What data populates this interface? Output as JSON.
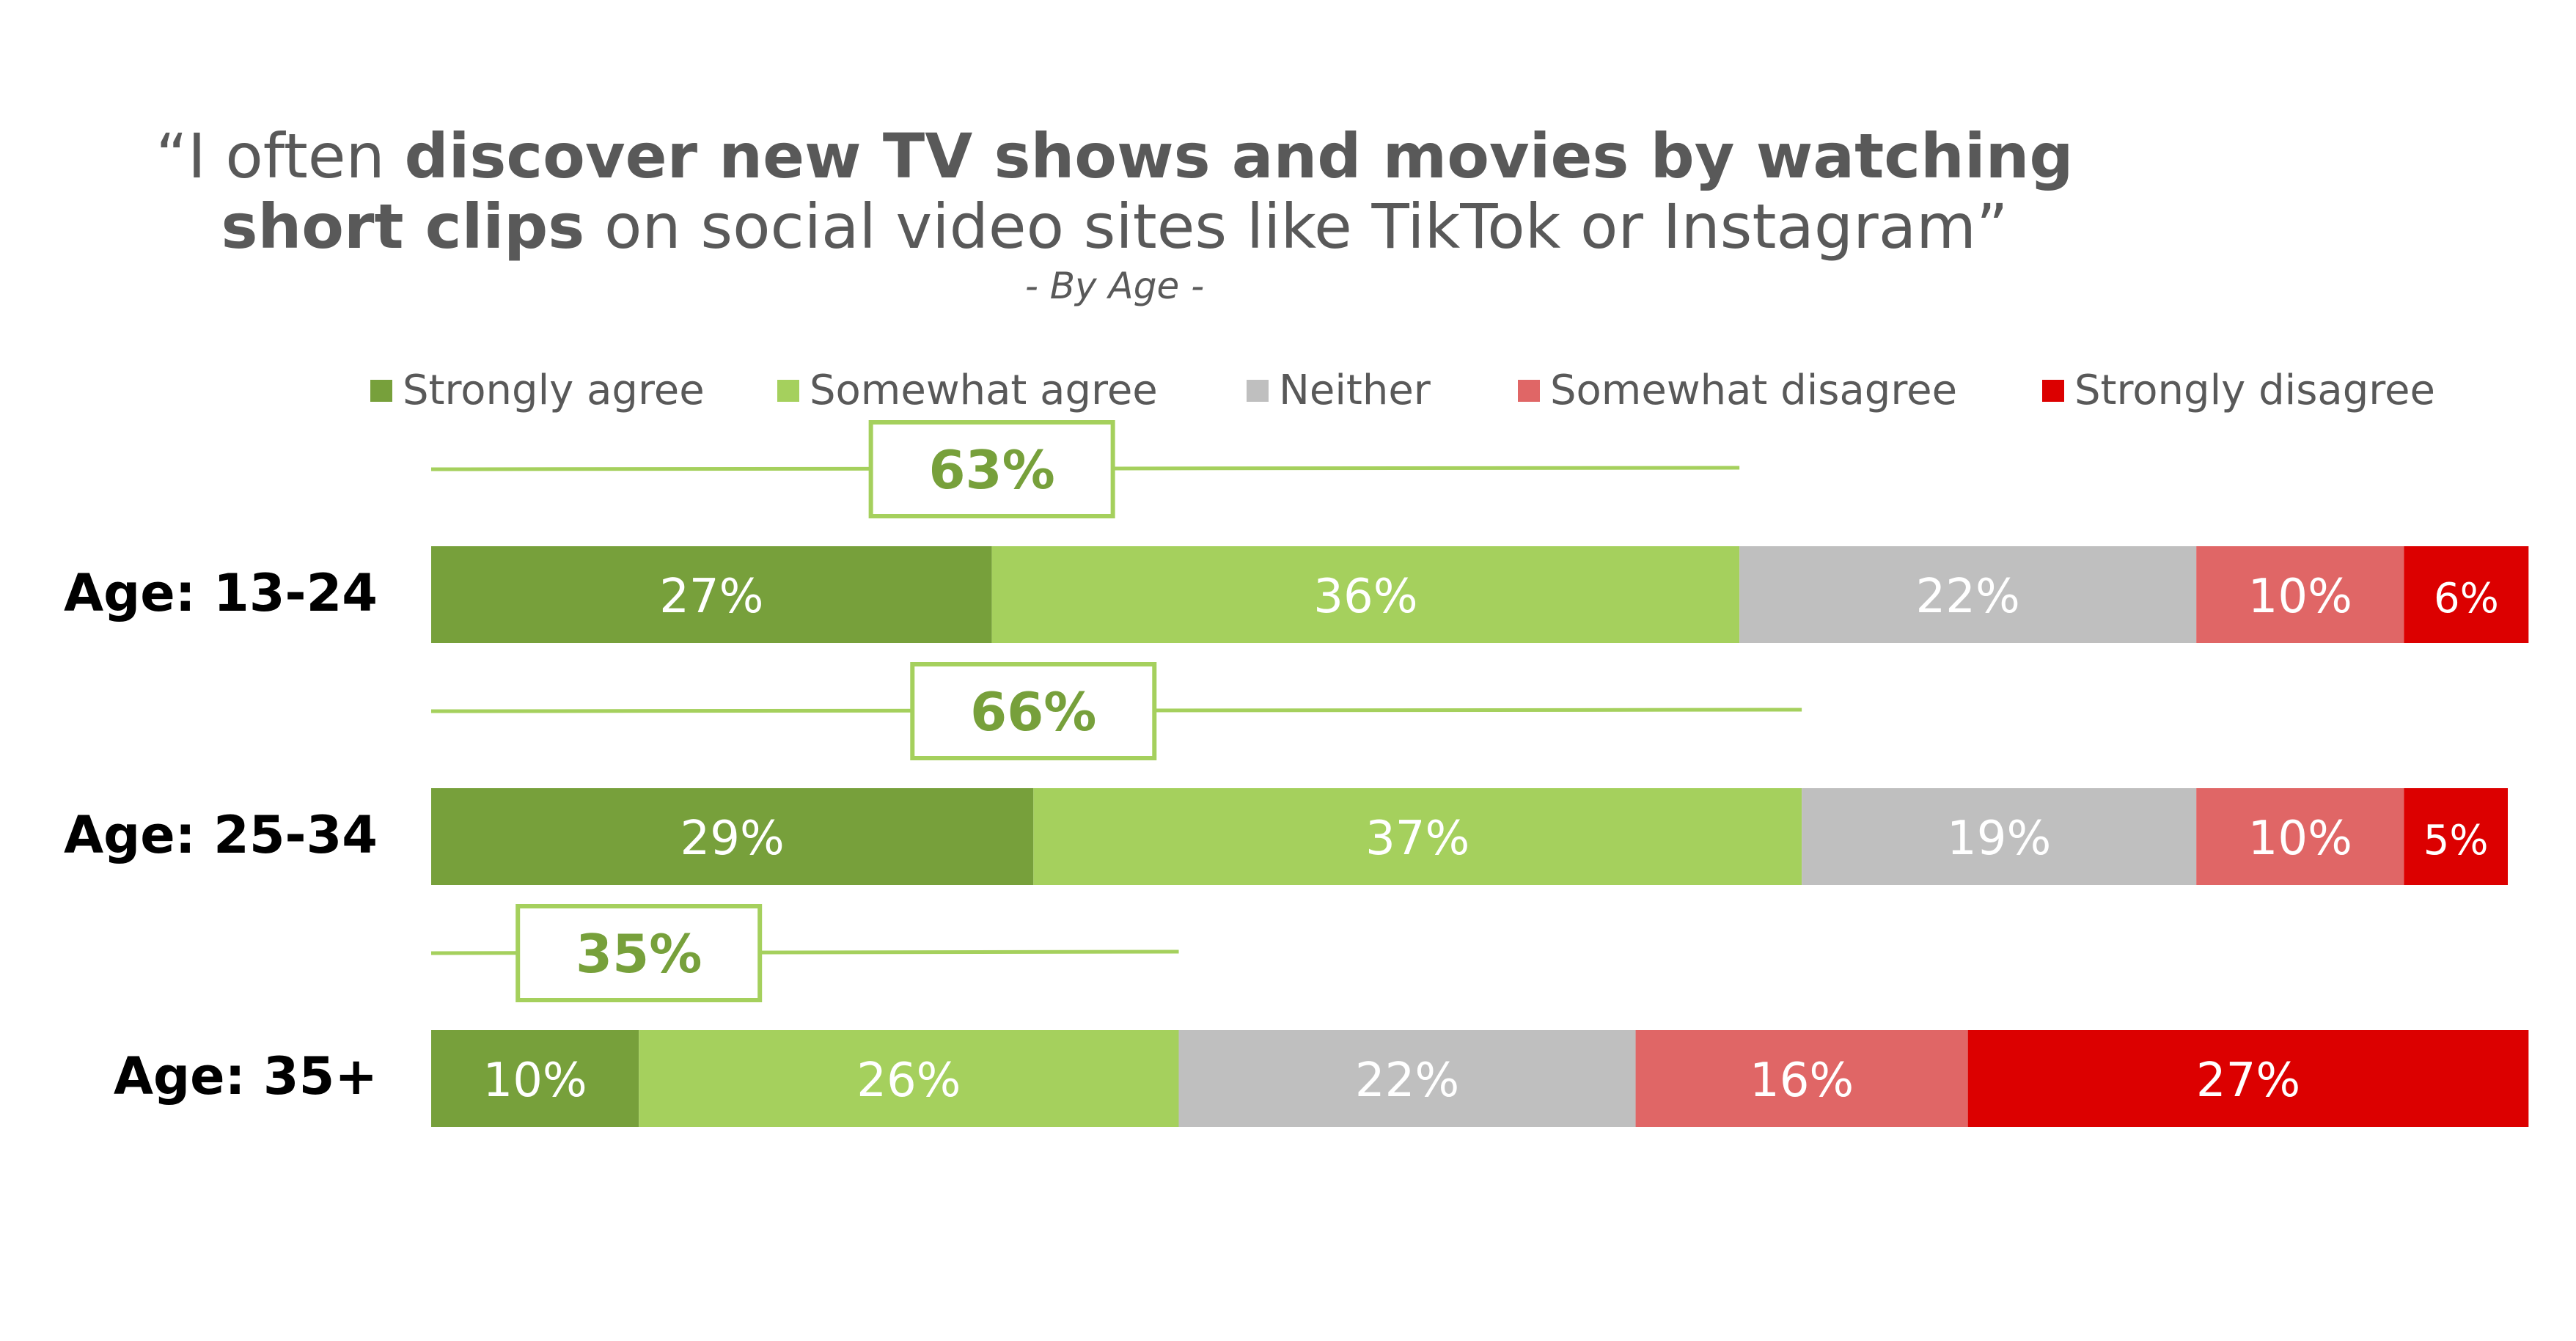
{
  "title": {
    "line1_pre": "“I often ",
    "line1_bold": "discover new TV shows and movies by watching",
    "line2_bold": "short clips",
    "line2_post": " on social video sites like TikTok or Instagram”",
    "subtitle": "- By Age -"
  },
  "legend": [
    {
      "label": "Strongly agree",
      "color": "#77a03b"
    },
    {
      "label": "Somewhat agree",
      "color": "#a5d05d"
    },
    {
      "label": "Neither",
      "color": "#bfbfbf"
    },
    {
      "label": "Somewhat disagree",
      "color": "#e06666"
    },
    {
      "label": "Strongly disagree",
      "color": "#dc0000"
    }
  ],
  "chart_data": {
    "type": "bar",
    "orientation": "horizontal",
    "stacked": true,
    "categories": [
      "Age: 13-24",
      "Age: 25-34",
      "Age: 35+"
    ],
    "series": [
      {
        "name": "Strongly agree",
        "values": [
          27,
          29,
          10
        ],
        "labels": [
          "27%",
          "29%",
          "10%"
        ]
      },
      {
        "name": "Somewhat agree",
        "values": [
          36,
          37,
          26
        ],
        "labels": [
          "36%",
          "37%",
          "26%"
        ]
      },
      {
        "name": "Neither",
        "values": [
          22,
          19,
          22
        ],
        "labels": [
          "22%",
          "19%",
          "22%"
        ]
      },
      {
        "name": "Somewhat disagree",
        "values": [
          10,
          10,
          16
        ],
        "labels": [
          "10%",
          "10%",
          "16%"
        ]
      },
      {
        "name": "Strongly disagree",
        "values": [
          6,
          5,
          27
        ],
        "labels": [
          "6%",
          "5%",
          "27%"
        ]
      }
    ],
    "agree_totals": {
      "values": [
        63,
        66,
        35
      ],
      "labels": [
        "63%",
        "66%",
        "35%"
      ]
    },
    "xlim": [
      0,
      100
    ],
    "legend_position": "top",
    "grid": false
  }
}
